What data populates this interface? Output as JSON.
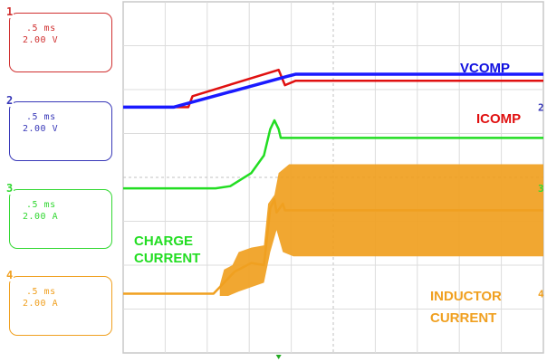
{
  "channels": [
    {
      "num": "1",
      "timebase": ".5 ms",
      "scale": "2.00 V",
      "color": "#d03030"
    },
    {
      "num": "2",
      "timebase": ".5 ms",
      "scale": "2.00 V",
      "color": "#3838b8"
    },
    {
      "num": "3",
      "timebase": ".5 ms",
      "scale": "2.00 A",
      "color": "#33d833"
    },
    {
      "num": "4",
      "timebase": ".5 ms",
      "scale": "2.00 A",
      "color": "#f0a020"
    }
  ],
  "labels": {
    "vcomp": "VCOMP",
    "icomp": "ICOMP",
    "charge_line1": "CHARGE",
    "charge_line2": "CURRENT",
    "inductor_line1": "INDUCTOR",
    "inductor_line2": "CURRENT"
  },
  "right_markers": [
    "2",
    "3",
    "4"
  ],
  "chart_data": {
    "type": "line",
    "grid": {
      "x_divisions": 10,
      "y_divisions": 8,
      "x_unit": "div",
      "y_unit": "div"
    },
    "xlim": [
      0,
      10
    ],
    "ylim": [
      0,
      8
    ],
    "series": [
      {
        "name": "VCOMP",
        "color": "#1a1aff",
        "points": [
          [
            0,
            5.6
          ],
          [
            1.2,
            5.6
          ],
          [
            3.9,
            6.3
          ],
          [
            4.1,
            6.35
          ],
          [
            10,
            6.35
          ]
        ]
      },
      {
        "name": "ICOMP",
        "color": "#e01010",
        "points": [
          [
            0,
            5.6
          ],
          [
            1.55,
            5.6
          ],
          [
            1.65,
            5.85
          ],
          [
            3.7,
            6.45
          ],
          [
            3.85,
            6.1
          ],
          [
            4.1,
            6.2
          ],
          [
            10,
            6.2
          ]
        ]
      },
      {
        "name": "CHARGE CURRENT",
        "color": "#22dd22",
        "points": [
          [
            0,
            3.75
          ],
          [
            2.2,
            3.75
          ],
          [
            2.55,
            3.8
          ],
          [
            3.05,
            4.1
          ],
          [
            3.35,
            4.5
          ],
          [
            3.5,
            5.1
          ],
          [
            3.6,
            5.3
          ],
          [
            3.7,
            5.1
          ],
          [
            3.75,
            4.9
          ],
          [
            4.1,
            4.9
          ],
          [
            10,
            4.9
          ]
        ]
      },
      {
        "name": "INDUCTOR CURRENT",
        "color": "#f0a020",
        "points": [
          [
            0,
            1.35
          ],
          [
            2.15,
            1.35
          ],
          [
            2.3,
            1.5
          ],
          [
            2.65,
            1.85
          ],
          [
            3.05,
            2.05
          ],
          [
            3.35,
            2.0
          ],
          [
            3.5,
            3.3
          ],
          [
            3.6,
            3.5
          ],
          [
            3.65,
            3.2
          ],
          [
            3.8,
            3.4
          ],
          [
            3.85,
            3.25
          ],
          [
            10,
            3.25
          ]
        ],
        "envelope_upper": [
          [
            2.3,
            1.55
          ],
          [
            2.4,
            1.9
          ],
          [
            2.6,
            2.0
          ],
          [
            2.75,
            2.3
          ],
          [
            3.05,
            2.4
          ],
          [
            3.35,
            2.45
          ],
          [
            3.45,
            3.4
          ],
          [
            3.6,
            3.6
          ],
          [
            3.7,
            4.1
          ],
          [
            3.95,
            4.3
          ],
          [
            10,
            4.3
          ]
        ],
        "envelope_lower": [
          [
            2.3,
            1.3
          ],
          [
            2.5,
            1.3
          ],
          [
            2.75,
            1.4
          ],
          [
            3.05,
            1.5
          ],
          [
            3.35,
            1.6
          ],
          [
            3.5,
            2.3
          ],
          [
            3.65,
            2.8
          ],
          [
            3.8,
            2.3
          ],
          [
            4.05,
            2.2
          ],
          [
            10,
            2.2
          ]
        ]
      }
    ]
  }
}
